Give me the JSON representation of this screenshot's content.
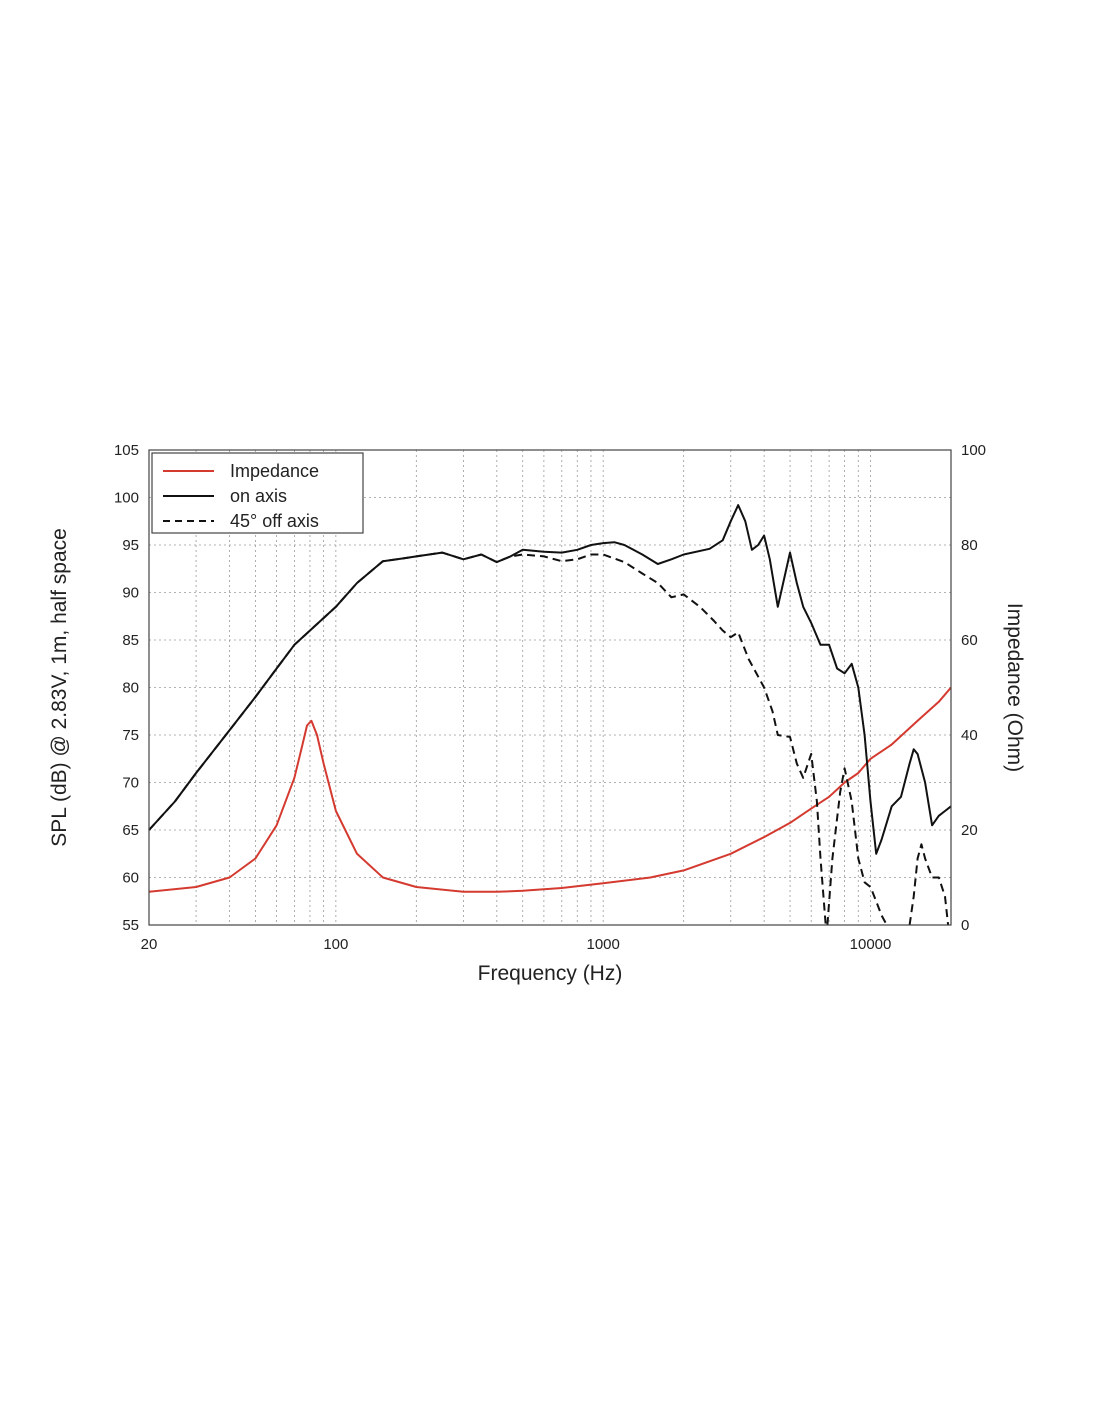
{
  "chart_data": {
    "type": "line",
    "xlabel": "Frequency (Hz)",
    "ylabel": "SPL (dB) @ 2.83V, 1m, half space",
    "y2label": "Impedance (Ohm)",
    "xscale": "log",
    "xlim": [
      20,
      20000
    ],
    "ylim": [
      55,
      105
    ],
    "y2lim": [
      0,
      100
    ],
    "grid": true,
    "legend_position": "top-left",
    "x_ticks": [
      "20",
      "100",
      "1000",
      "10000"
    ],
    "y_ticks": [
      "55",
      "60",
      "65",
      "70",
      "75",
      "80",
      "85",
      "90",
      "95",
      "100",
      "105"
    ],
    "y2_ticks": [
      "0",
      "20",
      "40",
      "60",
      "80",
      "100"
    ],
    "series": [
      {
        "name": "Impedance",
        "axis": "right",
        "color": "#d43a2f",
        "dash": "solid",
        "points": [
          [
            20,
            7
          ],
          [
            30,
            8
          ],
          [
            40,
            10
          ],
          [
            50,
            14
          ],
          [
            60,
            21
          ],
          [
            70,
            31
          ],
          [
            75,
            38
          ],
          [
            78,
            42
          ],
          [
            81,
            43
          ],
          [
            85,
            40
          ],
          [
            90,
            34
          ],
          [
            100,
            24
          ],
          [
            120,
            15
          ],
          [
            150,
            10
          ],
          [
            200,
            8
          ],
          [
            300,
            7
          ],
          [
            400,
            7
          ],
          [
            500,
            7.2
          ],
          [
            700,
            7.8
          ],
          [
            1000,
            8.8
          ],
          [
            1500,
            10
          ],
          [
            2000,
            11.5
          ],
          [
            3000,
            15
          ],
          [
            4000,
            18.5
          ],
          [
            5000,
            21.5
          ],
          [
            6000,
            24.5
          ],
          [
            7000,
            27
          ],
          [
            8000,
            30
          ],
          [
            9000,
            32
          ],
          [
            10000,
            35
          ],
          [
            12000,
            38
          ],
          [
            15000,
            43
          ],
          [
            18000,
            47
          ],
          [
            20000,
            50
          ]
        ]
      },
      {
        "name": "on axis",
        "axis": "left",
        "color": "#111111",
        "dash": "solid",
        "points": [
          [
            20,
            65
          ],
          [
            25,
            68
          ],
          [
            30,
            71
          ],
          [
            40,
            75.5
          ],
          [
            50,
            79
          ],
          [
            60,
            82
          ],
          [
            70,
            84.5
          ],
          [
            80,
            86
          ],
          [
            100,
            88.5
          ],
          [
            120,
            91
          ],
          [
            150,
            93.3
          ],
          [
            180,
            93.6
          ],
          [
            200,
            93.8
          ],
          [
            250,
            94.2
          ],
          [
            300,
            93.5
          ],
          [
            350,
            94
          ],
          [
            400,
            93.2
          ],
          [
            450,
            93.8
          ],
          [
            500,
            94.5
          ],
          [
            600,
            94.3
          ],
          [
            700,
            94.2
          ],
          [
            800,
            94.5
          ],
          [
            900,
            95
          ],
          [
            1000,
            95.2
          ],
          [
            1100,
            95.3
          ],
          [
            1200,
            95
          ],
          [
            1400,
            94
          ],
          [
            1600,
            93
          ],
          [
            1800,
            93.5
          ],
          [
            2000,
            94
          ],
          [
            2500,
            94.6
          ],
          [
            2800,
            95.5
          ],
          [
            3000,
            97.5
          ],
          [
            3200,
            99.2
          ],
          [
            3400,
            97.5
          ],
          [
            3600,
            94.5
          ],
          [
            3800,
            95
          ],
          [
            4000,
            96
          ],
          [
            4200,
            93.5
          ],
          [
            4500,
            88.5
          ],
          [
            4800,
            92
          ],
          [
            5000,
            94.2
          ],
          [
            5300,
            91
          ],
          [
            5600,
            88.5
          ],
          [
            6000,
            86.8
          ],
          [
            6500,
            84.5
          ],
          [
            7000,
            84.5
          ],
          [
            7500,
            82
          ],
          [
            8000,
            81.5
          ],
          [
            8500,
            82.5
          ],
          [
            9000,
            80
          ],
          [
            9500,
            75
          ],
          [
            10000,
            68
          ],
          [
            10500,
            62.5
          ],
          [
            11000,
            64
          ],
          [
            12000,
            67.5
          ],
          [
            13000,
            68.5
          ],
          [
            14000,
            72
          ],
          [
            14500,
            73.5
          ],
          [
            15000,
            73
          ],
          [
            16000,
            70
          ],
          [
            17000,
            65.5
          ],
          [
            18000,
            66.5
          ],
          [
            19000,
            67
          ],
          [
            20000,
            67.5
          ]
        ]
      },
      {
        "name": "45° off axis",
        "axis": "left",
        "color": "#111111",
        "dash": "dashed",
        "points": [
          [
            20,
            65
          ],
          [
            25,
            68
          ],
          [
            30,
            71
          ],
          [
            40,
            75.5
          ],
          [
            50,
            79
          ],
          [
            60,
            82
          ],
          [
            70,
            84.5
          ],
          [
            80,
            86
          ],
          [
            100,
            88.5
          ],
          [
            120,
            91
          ],
          [
            150,
            93.3
          ],
          [
            180,
            93.6
          ],
          [
            200,
            93.8
          ],
          [
            250,
            94.2
          ],
          [
            300,
            93.5
          ],
          [
            350,
            94
          ],
          [
            400,
            93.2
          ],
          [
            450,
            93.8
          ],
          [
            500,
            94
          ],
          [
            600,
            93.8
          ],
          [
            700,
            93.3
          ],
          [
            800,
            93.5
          ],
          [
            900,
            94
          ],
          [
            1000,
            94
          ],
          [
            1200,
            93.2
          ],
          [
            1400,
            92
          ],
          [
            1600,
            91
          ],
          [
            1800,
            89.5
          ],
          [
            2000,
            89.8
          ],
          [
            2300,
            88.5
          ],
          [
            2600,
            87
          ],
          [
            2800,
            86
          ],
          [
            3000,
            85.3
          ],
          [
            3200,
            85.8
          ],
          [
            3500,
            83
          ],
          [
            4000,
            80
          ],
          [
            4300,
            77.5
          ],
          [
            4500,
            75
          ],
          [
            5000,
            74.8
          ],
          [
            5300,
            72
          ],
          [
            5600,
            70.5
          ],
          [
            6000,
            73
          ],
          [
            6300,
            68
          ],
          [
            6500,
            62
          ],
          [
            6800,
            55
          ]
        ]
      },
      {
        "name": "45° off axis",
        "axis": "left",
        "color": "#111111",
        "dash": "dashed",
        "points": [
          [
            6900,
            55
          ],
          [
            7200,
            62
          ],
          [
            7700,
            69
          ],
          [
            8000,
            71.5
          ],
          [
            8500,
            68
          ],
          [
            9000,
            62
          ],
          [
            9500,
            59.5
          ],
          [
            10000,
            59
          ],
          [
            10500,
            57.5
          ],
          [
            11000,
            56
          ],
          [
            11500,
            55
          ]
        ]
      },
      {
        "name": "45° off axis",
        "axis": "left",
        "color": "#111111",
        "dash": "dashed",
        "points": [
          [
            14000,
            55
          ],
          [
            14500,
            58
          ],
          [
            15000,
            62
          ],
          [
            15500,
            63.5
          ],
          [
            16000,
            62
          ],
          [
            17000,
            60
          ],
          [
            18000,
            60
          ],
          [
            19000,
            58
          ],
          [
            19500,
            55
          ]
        ]
      }
    ]
  }
}
